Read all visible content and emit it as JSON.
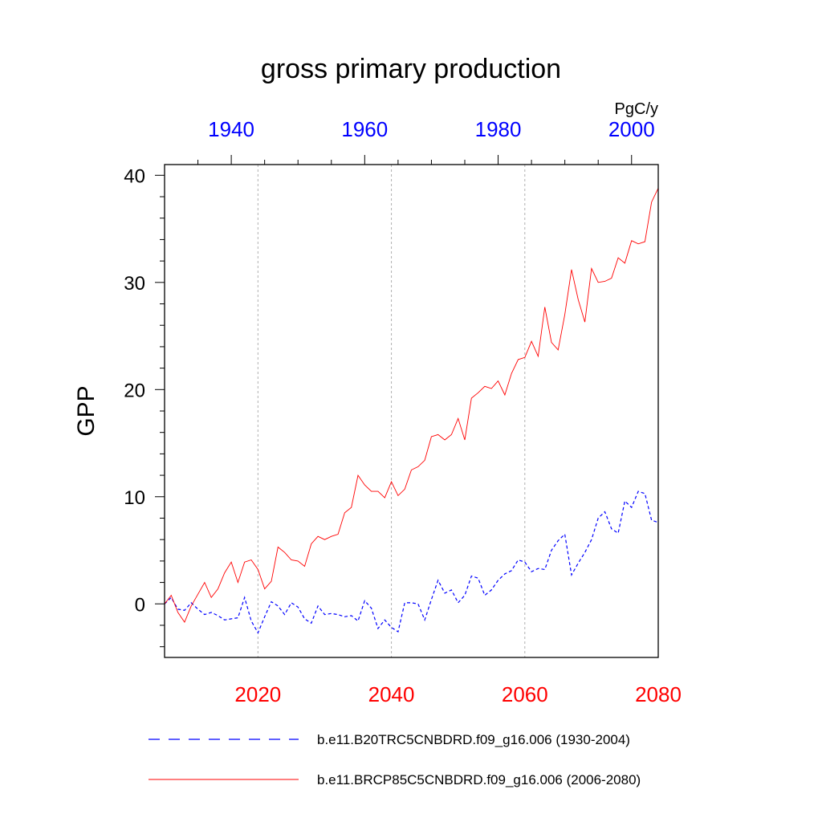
{
  "chart_data": {
    "type": "line",
    "title": "gross primary production",
    "ylabel": "GPP",
    "units": "PgC/y",
    "xlim": [
      2006,
      2080
    ],
    "ylim": [
      -5,
      41
    ],
    "yticks": [
      0,
      10,
      20,
      30,
      40
    ],
    "bottom_axis": {
      "ticks": [
        2020,
        2040,
        2060,
        2080
      ],
      "color": "#ff0000"
    },
    "top_axis": {
      "ticks": [
        1940,
        1960,
        1980,
        2000
      ],
      "offset_years": 76,
      "color": "#0000ff"
    },
    "grid_x": [
      2020,
      2040,
      2060
    ],
    "series": [
      {
        "name": "b.e11.B20TRC5CNBDRD.f09_g16.006 (1930-2004)",
        "color": "#0000ff",
        "dash": "dashed",
        "x": [
          2006,
          2007,
          2008,
          2009,
          2010,
          2011,
          2012,
          2013,
          2014,
          2015,
          2016,
          2017,
          2018,
          2019,
          2020,
          2021,
          2022,
          2023,
          2024,
          2025,
          2026,
          2027,
          2028,
          2029,
          2030,
          2031,
          2032,
          2033,
          2034,
          2035,
          2036,
          2037,
          2038,
          2039,
          2040,
          2041,
          2042,
          2043,
          2044,
          2045,
          2046,
          2047,
          2048,
          2049,
          2050,
          2051,
          2052,
          2053,
          2054,
          2055,
          2056,
          2057,
          2058,
          2059,
          2060,
          2061,
          2062,
          2063,
          2064,
          2065,
          2066,
          2067,
          2068,
          2069,
          2070,
          2071,
          2072,
          2073,
          2074,
          2075,
          2076,
          2077,
          2078,
          2079,
          2080
        ],
        "values": [
          0,
          0.6,
          -0.5,
          -0.6,
          0.1,
          -0.5,
          -1,
          -0.8,
          -1.1,
          -1.5,
          -1.4,
          -1.3,
          0.6,
          -1.6,
          -2.7,
          -1.2,
          0.2,
          -0.2,
          -1,
          0.1,
          -0.3,
          -1.4,
          -1.8,
          -0.2,
          -1,
          -0.9,
          -1,
          -1.2,
          -1.1,
          -1.6,
          0.3,
          -0.4,
          -2.3,
          -1.5,
          -2.2,
          -2.6,
          0.1,
          0.1,
          0,
          -1.5,
          0.4,
          2.2,
          1,
          1.3,
          0.1,
          0.8,
          2.6,
          2.4,
          0.8,
          1.3,
          2.2,
          2.8,
          3.1,
          4.1,
          3.9,
          3,
          3.3,
          3.2,
          5,
          5.9,
          6.5,
          2.7,
          3.8,
          4.8,
          6,
          8,
          8.6,
          7,
          6.6,
          9.6,
          9,
          10.5,
          10.3,
          7.8,
          7.6
        ]
      },
      {
        "name": "b.e11.BRCP85C5CNBDRD.f09_g16.006 (2006-2080)",
        "color": "#ff0000",
        "dash": "solid",
        "x": [
          2006,
          2007,
          2008,
          2009,
          2010,
          2011,
          2012,
          2013,
          2014,
          2015,
          2016,
          2017,
          2018,
          2019,
          2020,
          2021,
          2022,
          2023,
          2024,
          2025,
          2026,
          2027,
          2028,
          2029,
          2030,
          2031,
          2032,
          2033,
          2034,
          2035,
          2036,
          2037,
          2038,
          2039,
          2040,
          2041,
          2042,
          2043,
          2044,
          2045,
          2046,
          2047,
          2048,
          2049,
          2050,
          2051,
          2052,
          2053,
          2054,
          2055,
          2056,
          2057,
          2058,
          2059,
          2060,
          2061,
          2062,
          2063,
          2064,
          2065,
          2066,
          2067,
          2068,
          2069,
          2070,
          2071,
          2072,
          2073,
          2074,
          2075,
          2076,
          2077,
          2078,
          2079,
          2080
        ],
        "values": [
          0,
          0.8,
          -0.8,
          -1.7,
          -0.2,
          0.9,
          2,
          0.6,
          1.4,
          2.9,
          3.9,
          2,
          3.9,
          4.1,
          3.2,
          1.4,
          2.1,
          5.3,
          4.8,
          4.1,
          4,
          3.5,
          5.6,
          6.3,
          6,
          6.3,
          6.5,
          8.5,
          9,
          12,
          11.1,
          10.5,
          10.5,
          9.9,
          11.4,
          10.1,
          10.7,
          12.5,
          12.8,
          13.4,
          15.6,
          15.8,
          15.3,
          15.8,
          17.3,
          15.3,
          19.2,
          19.7,
          20.3,
          20.1,
          20.8,
          19.5,
          21.5,
          22.8,
          23,
          24.5,
          23.1,
          27.7,
          24.4,
          23.7,
          27,
          31.2,
          28.4,
          26.3,
          31.3,
          30,
          30.1,
          30.4,
          32.3,
          31.8,
          33.9,
          33.6,
          33.8,
          37.5,
          38.8
        ]
      }
    ]
  }
}
